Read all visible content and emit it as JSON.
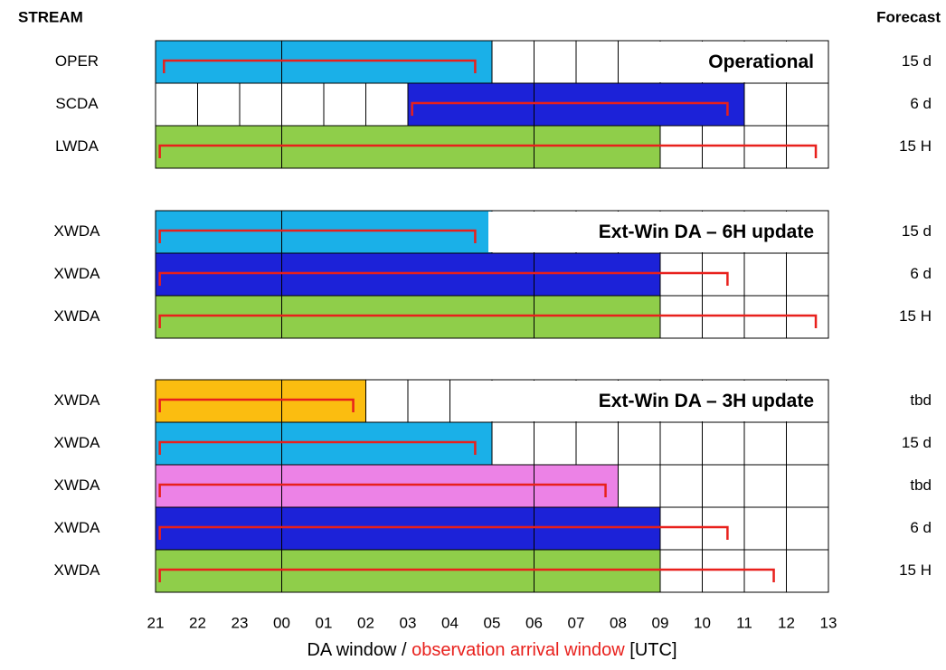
{
  "header": {
    "stream": "STREAM",
    "forecast": "Forecast"
  },
  "groups": [
    {
      "label": "Operational",
      "rows": [
        {
          "stream": "OPER",
          "forecast": "15 d",
          "color": "#1ab0e8",
          "da_window": [
            0,
            8
          ],
          "obs_window": [
            0.2,
            7.6
          ]
        },
        {
          "stream": "SCDA",
          "forecast": "6 d",
          "color": "#1c22d8",
          "da_window": [
            6,
            14
          ],
          "obs_window": [
            6.1,
            13.6
          ]
        },
        {
          "stream": "LWDA",
          "forecast": "15 H",
          "color": "#8fce4a",
          "da_window": [
            0,
            12
          ],
          "obs_window": [
            0.1,
            15.7
          ]
        }
      ]
    },
    {
      "label": "Ext-Win DA – 6H update",
      "rows": [
        {
          "stream": "XWDA",
          "forecast": "15 d",
          "color": "#1ab0e8",
          "da_window": [
            0,
            8
          ],
          "obs_window": [
            0.1,
            7.6
          ]
        },
        {
          "stream": "XWDA",
          "forecast": "6 d",
          "color": "#1c22d8",
          "da_window": [
            0,
            12
          ],
          "obs_window": [
            0.1,
            13.6
          ]
        },
        {
          "stream": "XWDA",
          "forecast": "15 H",
          "color": "#8fce4a",
          "da_window": [
            0,
            12
          ],
          "obs_window": [
            0.1,
            15.7
          ]
        }
      ]
    },
    {
      "label": "Ext-Win DA – 3H update",
      "rows": [
        {
          "stream": "XWDA",
          "forecast": "tbd",
          "color": "#fbbd10",
          "da_window": [
            0,
            5
          ],
          "obs_window": [
            0.1,
            4.7
          ]
        },
        {
          "stream": "XWDA",
          "forecast": "15 d",
          "color": "#1ab0e8",
          "da_window": [
            0,
            8
          ],
          "obs_window": [
            0.1,
            7.6
          ]
        },
        {
          "stream": "XWDA",
          "forecast": "tbd",
          "color": "#ec82e6",
          "da_window": [
            0,
            11
          ],
          "obs_window": [
            0.1,
            10.7
          ]
        },
        {
          "stream": "XWDA",
          "forecast": "6 d",
          "color": "#1c22d8",
          "da_window": [
            0,
            12
          ],
          "obs_window": [
            0.1,
            13.6
          ]
        },
        {
          "stream": "XWDA",
          "forecast": "15 H",
          "color": "#8fce4a",
          "da_window": [
            0,
            12
          ],
          "obs_window": [
            0.1,
            14.7
          ]
        }
      ]
    }
  ],
  "axis": {
    "ticks": [
      "21",
      "22",
      "23",
      "00",
      "01",
      "02",
      "03",
      "04",
      "05",
      "06",
      "07",
      "08",
      "09",
      "10",
      "11",
      "12",
      "13"
    ],
    "title": [
      "DA window / ",
      "observation arrival window",
      " [UTC]"
    ]
  }
}
